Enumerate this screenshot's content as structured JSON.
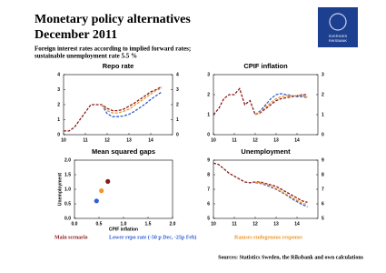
{
  "header": {
    "title": [
      "Monetary policy alternatives",
      "December 2011"
    ],
    "subtitle": [
      "Foreign interest rates according to implied forward rates;",
      "sustainable unemployment rate 5.5 %"
    ],
    "logo": [
      "SVERIGES",
      "RIKSBANK"
    ]
  },
  "legend": [
    {
      "name": "Main scenario",
      "color": "#8b1a1a"
    },
    {
      "name": "Lower repo rate (-50 p Dec, -25p Feb)",
      "color": "#2f5fd6"
    },
    {
      "name": "Ramses endogenous response",
      "color": "#f0962a"
    }
  ],
  "source": "Sources: Statistics Sweden, the Riksbank and own calculations",
  "chart_data": [
    {
      "type": "line",
      "title": "Repo rate",
      "x": [
        10,
        10.25,
        10.5,
        10.75,
        11,
        11.25,
        11.5,
        11.75,
        12,
        12.25,
        12.5,
        12.75,
        13,
        13.25,
        13.5,
        13.75,
        14,
        14.25,
        14.5
      ],
      "series": [
        {
          "name": "Main scenario",
          "color": "#8b1a1a",
          "values": [
            0.25,
            0.25,
            0.5,
            1.0,
            1.5,
            2.0,
            2.0,
            2.0,
            1.75,
            1.6,
            1.6,
            1.7,
            1.9,
            2.1,
            2.35,
            2.6,
            2.85,
            3.0,
            3.2
          ]
        },
        {
          "name": "Lower repo rate (-50 p Dec, -25p Feb)",
          "color": "#2f5fd6",
          "values": [
            null,
            null,
            null,
            null,
            null,
            null,
            null,
            2.0,
            1.4,
            1.2,
            1.2,
            1.25,
            1.35,
            1.55,
            1.8,
            2.05,
            2.35,
            2.6,
            2.85
          ]
        },
        {
          "name": "Ramses endogenous response",
          "color": "#f0962a",
          "values": [
            null,
            null,
            null,
            null,
            null,
            null,
            null,
            2.0,
            1.6,
            1.45,
            1.45,
            1.55,
            1.7,
            1.95,
            2.2,
            2.45,
            2.7,
            2.95,
            3.1
          ]
        }
      ],
      "xlim": [
        10,
        15
      ],
      "ylim": [
        0,
        4
      ],
      "xticks": [
        10,
        11,
        12,
        13,
        14
      ],
      "yticks": [
        0,
        1,
        2,
        3,
        4
      ]
    },
    {
      "type": "line",
      "title": "CPIF inflation",
      "x": [
        10,
        10.25,
        10.5,
        10.75,
        11,
        11.25,
        11.5,
        11.75,
        12,
        12.25,
        12.5,
        12.75,
        13,
        13.25,
        13.5,
        13.75,
        14,
        14.25,
        14.5
      ],
      "series": [
        {
          "name": "Main scenario",
          "color": "#8b1a1a",
          "values": [
            1.0,
            1.3,
            1.8,
            2.0,
            2.0,
            2.3,
            1.5,
            1.7,
            1.0,
            1.1,
            1.3,
            1.5,
            1.7,
            1.8,
            1.85,
            1.9,
            1.95,
            2.0,
            2.0
          ]
        },
        {
          "name": "Lower repo rate (-50 p Dec, -25p Feb)",
          "color": "#2f5fd6",
          "values": [
            null,
            null,
            null,
            null,
            null,
            null,
            null,
            null,
            1.0,
            1.2,
            1.5,
            1.8,
            2.0,
            2.05,
            2.0,
            1.95,
            1.9,
            1.9,
            1.85
          ]
        },
        {
          "name": "Ramses endogenous response",
          "color": "#f0962a",
          "values": [
            null,
            null,
            null,
            null,
            null,
            null,
            null,
            null,
            1.0,
            1.15,
            1.4,
            1.6,
            1.8,
            1.9,
            1.95,
            1.95,
            1.95,
            1.95,
            1.9
          ]
        }
      ],
      "xlim": [
        10,
        15
      ],
      "ylim": [
        0,
        3
      ],
      "xticks": [
        10,
        11,
        12,
        13,
        14
      ],
      "yticks": [
        0,
        1,
        2,
        3
      ]
    },
    {
      "type": "scatter",
      "title": "Mean squared gaps",
      "xlabel": "CPIF inflation",
      "ylabel": "Unemployment",
      "x": [
        0.45,
        0.55,
        0.68
      ],
      "values": [
        0.6,
        0.95,
        1.27
      ],
      "colors": [
        "#2f5fd6",
        "#f0962a",
        "#8b1a1a"
      ],
      "xlim": [
        0,
        2
      ],
      "ylim": [
        0,
        2
      ],
      "xticks": [
        {
          "value": 0,
          "label": "0.0"
        },
        {
          "value": 0.5,
          "label": "0.5"
        },
        {
          "value": 1,
          "label": "1.0"
        },
        {
          "value": 1.5,
          "label": "1.5"
        },
        {
          "value": 2,
          "label": "2.0"
        }
      ],
      "yticks": [
        {
          "value": 0,
          "label": "0.0"
        },
        {
          "value": 0.5,
          "label": "0.5"
        },
        {
          "value": 1,
          "label": "1.0"
        },
        {
          "value": 1.5,
          "label": "1.5"
        },
        {
          "value": 2,
          "label": "2.0"
        }
      ]
    },
    {
      "type": "line",
      "title": "Unemployment",
      "x": [
        10,
        10.25,
        10.5,
        10.75,
        11,
        11.25,
        11.5,
        11.75,
        12,
        12.25,
        12.5,
        12.75,
        13,
        13.25,
        13.5,
        13.75,
        14,
        14.25,
        14.5
      ],
      "series": [
        {
          "name": "Main scenario",
          "color": "#8b1a1a",
          "values": [
            8.8,
            8.7,
            8.4,
            8.1,
            7.9,
            7.7,
            7.5,
            7.45,
            7.5,
            7.5,
            7.4,
            7.3,
            7.2,
            7.0,
            6.8,
            6.6,
            6.4,
            6.2,
            6.1
          ]
        },
        {
          "name": "Lower repo rate (-50 p Dec, -25p Feb)",
          "color": "#2f5fd6",
          "values": [
            null,
            null,
            null,
            null,
            null,
            null,
            null,
            null,
            7.45,
            7.4,
            7.3,
            7.15,
            7.0,
            6.8,
            6.6,
            6.35,
            6.15,
            5.95,
            5.8
          ]
        },
        {
          "name": "Ramses endogenous response",
          "color": "#f0962a",
          "values": [
            null,
            null,
            null,
            null,
            null,
            null,
            null,
            null,
            7.45,
            7.45,
            7.35,
            7.2,
            7.05,
            6.85,
            6.65,
            6.45,
            6.25,
            6.05,
            5.95
          ]
        }
      ],
      "xlim": [
        10,
        15
      ],
      "ylim": [
        5,
        9
      ],
      "xticks": [
        10,
        11,
        12,
        13,
        14
      ],
      "yticks": [
        5,
        6,
        7,
        8,
        9
      ]
    }
  ]
}
